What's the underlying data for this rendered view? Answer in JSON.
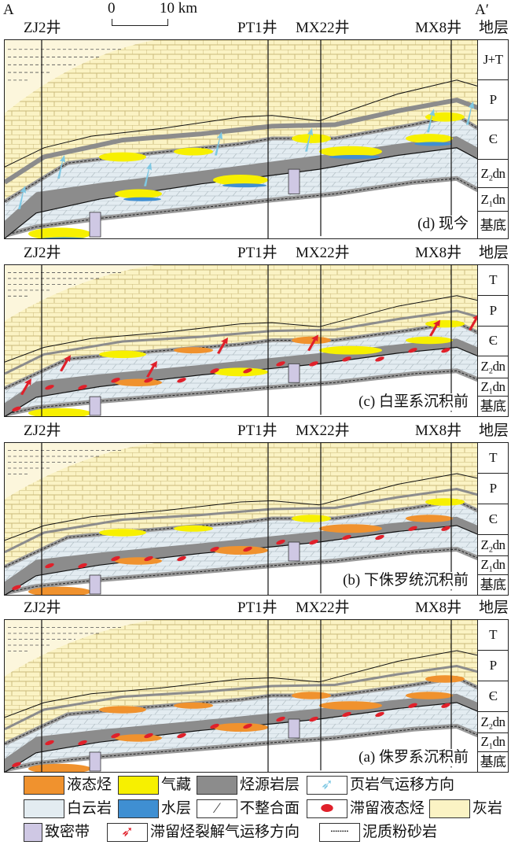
{
  "header": {
    "section_start": "A",
    "section_end": "A′",
    "scale_start": "0",
    "scale_end": "10 km"
  },
  "wells": [
    "ZJ2井",
    "PT1井",
    "MX22井",
    "MX8井"
  ],
  "strata_header": "地层",
  "panels": [
    {
      "caption": "(d) 现今",
      "strata": [
        "J+T",
        "P",
        "Є",
        "Z₂dn",
        "Z₁dn",
        "基底"
      ]
    },
    {
      "caption": "(c) 白垩系沉积前",
      "strata": [
        "T",
        "P",
        "Є",
        "Z₂dn",
        "Z₁dn",
        "基底"
      ]
    },
    {
      "caption": "(b) 下侏罗统沉积前",
      "strata": [
        "T",
        "P",
        "Є",
        "Z₂dn",
        "Z₁dn",
        "基底"
      ]
    },
    {
      "caption": "(a) 侏罗系沉积前",
      "strata": [
        "T",
        "P",
        "Є",
        "Z₂dn",
        "Z₁dn",
        "基底"
      ]
    }
  ],
  "legend": [
    {
      "label": "液态烃",
      "color": "#f0922e"
    },
    {
      "label": "气藏",
      "color": "#f7f000"
    },
    {
      "label": "烃源岩层",
      "color": "#8c8c8c"
    },
    {
      "label": "页岩气运移方向",
      "icon": "cyan-arrow-icon",
      "color": "#7ec8e3"
    },
    {
      "label": "白云岩",
      "color": "#e3ecf1"
    },
    {
      "label": "水层",
      "color": "#3f8fd2"
    },
    {
      "label": "不整合面",
      "icon": "unconformity-icon"
    },
    {
      "label": "滞留液态烃",
      "icon": "red-lens-icon",
      "color": "#e0202a"
    },
    {
      "label": "灰岩",
      "color": "#fbf3c4"
    },
    {
      "label": "致密带",
      "icon": "tight-zone-icon",
      "color": "#cfc8e4"
    },
    {
      "label": "滞留烃裂解气运移方向",
      "icon": "red-arrow-icon",
      "color": "#e0202a"
    },
    {
      "label": "泥质粉砂岩",
      "icon": "siltstone-icon"
    }
  ]
}
